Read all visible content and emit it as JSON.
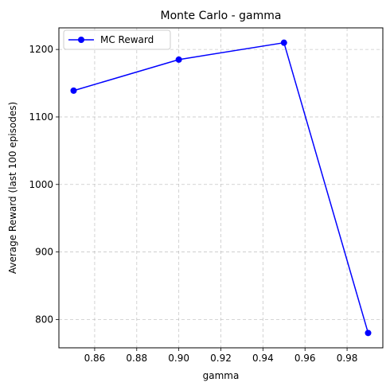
{
  "chart_data": {
    "type": "line",
    "title": "Monte Carlo - gamma",
    "xlabel": "gamma",
    "ylabel": "Average Reward (last 100 episodes)",
    "x": [
      0.85,
      0.9,
      0.95,
      0.99
    ],
    "series": [
      {
        "name": "MC Reward",
        "values": [
          1139,
          1185,
          1210,
          780
        ],
        "color": "#0000ff",
        "marker": "circle"
      }
    ],
    "xlim": [
      0.843,
      0.997
    ],
    "ylim": [
      758,
      1232
    ],
    "xticks": [
      0.86,
      0.88,
      0.9,
      0.92,
      0.94,
      0.96,
      0.98
    ],
    "xtick_labels": [
      "0.86",
      "0.88",
      "0.90",
      "0.92",
      "0.94",
      "0.96",
      "0.98"
    ],
    "yticks": [
      800,
      900,
      1000,
      1100,
      1200
    ],
    "ytick_labels": [
      "800",
      "900",
      "1000",
      "1100",
      "1200"
    ],
    "grid": true,
    "grid_style": "dashed",
    "legend_position": "top-left"
  }
}
